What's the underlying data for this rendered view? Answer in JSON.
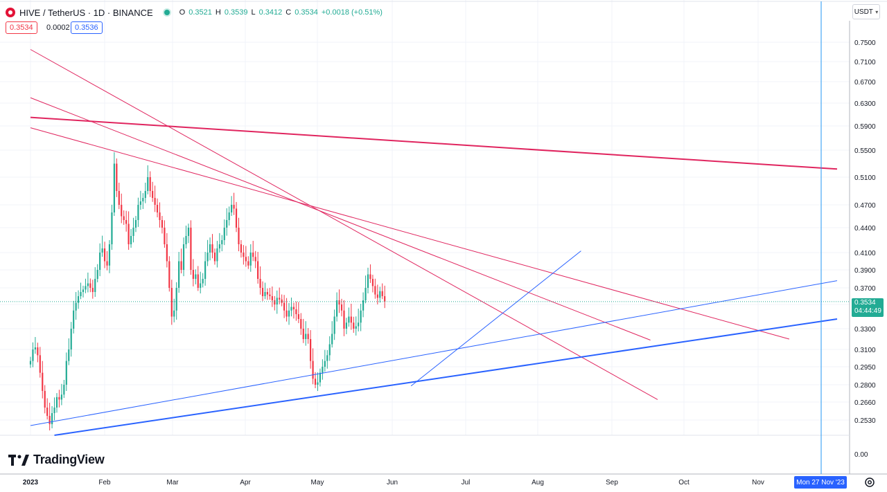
{
  "header": {
    "symbol": "HIVE / TetherUS · 1D · BINANCE",
    "open_label": "O",
    "open": "0.3521",
    "high_label": "H",
    "high": "0.3539",
    "low_label": "L",
    "low": "0.3412",
    "close_label": "C",
    "close": "0.3534",
    "change": "+0.0018 (+0.51%)"
  },
  "order_panel": {
    "sell": "0.3534",
    "spread": "0.0002",
    "buy": "0.3536"
  },
  "currency_button": "USDT",
  "brand": "TradingView",
  "last_price_tag": {
    "price": "0.3534",
    "countdown": "04:44:49"
  },
  "crosshair_date": "Mon 27 Nov '23",
  "colors": {
    "up": "#22ab94",
    "down": "#f23645",
    "trend_red": "#e0245e",
    "trend_blue": "#2962ff",
    "accent": "#2962ff"
  },
  "chart_data": {
    "type": "candlestick",
    "title": "HIVE / TetherUS · 1D · BINANCE",
    "x_tick_labels": [
      "2023",
      "Feb",
      "Mar",
      "Apr",
      "May",
      "Jun",
      "Jul",
      "Aug",
      "Sep",
      "Oct",
      "Nov"
    ],
    "y_tick_labels": [
      "0.7500",
      "0.7100",
      "0.6700",
      "0.6300",
      "0.5900",
      "0.5500",
      "0.5100",
      "0.4700",
      "0.4400",
      "0.4100",
      "0.3900",
      "0.3700",
      "0.3500",
      "0.3300",
      "0.3100",
      "0.2950",
      "0.2800",
      "0.2660",
      "0.2530",
      "0.00"
    ],
    "y_scale": "log",
    "x_range": [
      "2023-01-01",
      "2023-12-04"
    ],
    "series_closes": [
      0.3,
      0.31,
      0.312,
      0.305,
      0.29,
      0.275,
      0.262,
      0.256,
      0.25,
      0.258,
      0.262,
      0.27,
      0.268,
      0.272,
      0.28,
      0.3,
      0.31,
      0.33,
      0.345,
      0.352,
      0.36,
      0.365,
      0.368,
      0.372,
      0.375,
      0.37,
      0.365,
      0.38,
      0.39,
      0.41,
      0.415,
      0.4,
      0.395,
      0.42,
      0.46,
      0.53,
      0.49,
      0.47,
      0.455,
      0.45,
      0.445,
      0.42,
      0.43,
      0.44,
      0.45,
      0.47,
      0.475,
      0.48,
      0.49,
      0.51,
      0.49,
      0.48,
      0.47,
      0.46,
      0.45,
      0.44,
      0.42,
      0.4,
      0.37,
      0.34,
      0.345,
      0.37,
      0.4,
      0.39,
      0.42,
      0.43,
      0.44,
      0.39,
      0.38,
      0.385,
      0.37,
      0.375,
      0.38,
      0.4,
      0.41,
      0.42,
      0.41,
      0.4,
      0.415,
      0.42,
      0.425,
      0.44,
      0.45,
      0.46,
      0.47,
      0.465,
      0.44,
      0.42,
      0.41,
      0.405,
      0.4,
      0.395,
      0.41,
      0.405,
      0.4,
      0.38,
      0.37,
      0.36,
      0.365,
      0.362,
      0.36,
      0.355,
      0.35,
      0.358,
      0.356,
      0.352,
      0.345,
      0.34,
      0.345,
      0.348,
      0.346,
      0.342,
      0.338,
      0.33,
      0.32,
      0.325,
      0.32,
      0.3,
      0.285,
      0.28,
      0.282,
      0.29,
      0.295,
      0.3,
      0.305,
      0.315,
      0.325,
      0.34,
      0.355,
      0.35,
      0.345,
      0.33,
      0.335,
      0.34,
      0.335,
      0.33,
      0.332,
      0.335,
      0.345,
      0.355,
      0.37,
      0.385,
      0.38,
      0.372,
      0.362,
      0.358,
      0.366,
      0.36,
      0.3534
    ],
    "trendlines": [
      {
        "color": "trend_red",
        "from": [
          "2023-01-01",
          0.605
        ],
        "to": [
          "2023-12-04",
          0.522
        ],
        "style": "thick"
      },
      {
        "color": "trend_red",
        "from": [
          "2023-01-01",
          0.735
        ],
        "to": [
          "2023-09-20",
          0.268
        ],
        "style": "thin"
      },
      {
        "color": "trend_red",
        "from": [
          "2023-01-01",
          0.64
        ],
        "to": [
          "2023-09-17",
          0.319
        ],
        "style": "thin"
      },
      {
        "color": "trend_red",
        "from": [
          "2023-01-01",
          0.587
        ],
        "to": [
          "2023-11-14",
          0.32
        ],
        "style": "thin"
      },
      {
        "color": "trend_blue",
        "from": [
          "2023-01-01",
          0.249
        ],
        "to": [
          "2023-12-04",
          0.378
        ],
        "style": "thin"
      },
      {
        "color": "trend_blue",
        "from": [
          "2023-01-11",
          0.242
        ],
        "to": [
          "2023-12-04",
          0.338
        ],
        "style": "thick"
      },
      {
        "color": "trend_blue",
        "from": [
          "2023-06-09",
          0.279
        ],
        "to": [
          "2023-08-19",
          0.412
        ],
        "style": "thin"
      }
    ]
  }
}
